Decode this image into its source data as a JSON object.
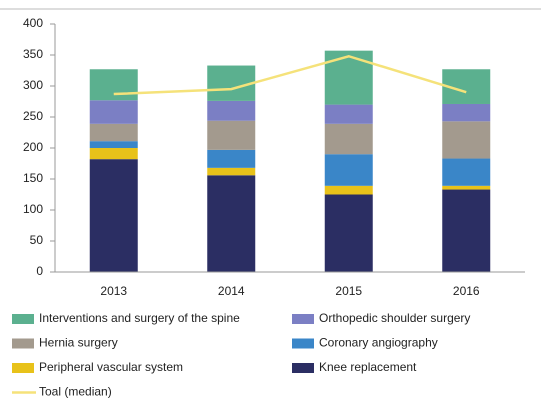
{
  "chart_data": {
    "type": "bar",
    "stacked": true,
    "categories": [
      "2013",
      "2014",
      "2015",
      "2016"
    ],
    "ylim": [
      0,
      400
    ],
    "yticks": [
      0,
      50,
      100,
      150,
      200,
      250,
      300,
      350,
      400
    ],
    "grid": false,
    "series": [
      {
        "name": "Interventions and surgery of the spine",
        "color": "#5bb08f",
        "values": [
          50,
          57,
          87,
          56
        ]
      },
      {
        "name": "Orthopedic shoulder surgery",
        "color": "#7b7fc4",
        "values": [
          38,
          32,
          31,
          28
        ]
      },
      {
        "name": "Hernia surgery",
        "color": "#a39a8e",
        "values": [
          28,
          47,
          49,
          60
        ]
      },
      {
        "name": "Coronary angiography",
        "color": "#3a86c8",
        "values": [
          11,
          29,
          51,
          44
        ]
      },
      {
        "name": "Peripheral vascular system",
        "color": "#e8c21a",
        "values": [
          18,
          12,
          14,
          6
        ]
      },
      {
        "name": "Knee replacement",
        "color": "#2b2e63",
        "values": [
          182,
          156,
          125,
          133
        ]
      },
      {
        "name": "Toal (median)",
        "type": "line",
        "color": "#f5e27a",
        "values": [
          287,
          295,
          348,
          290
        ]
      }
    ]
  }
}
